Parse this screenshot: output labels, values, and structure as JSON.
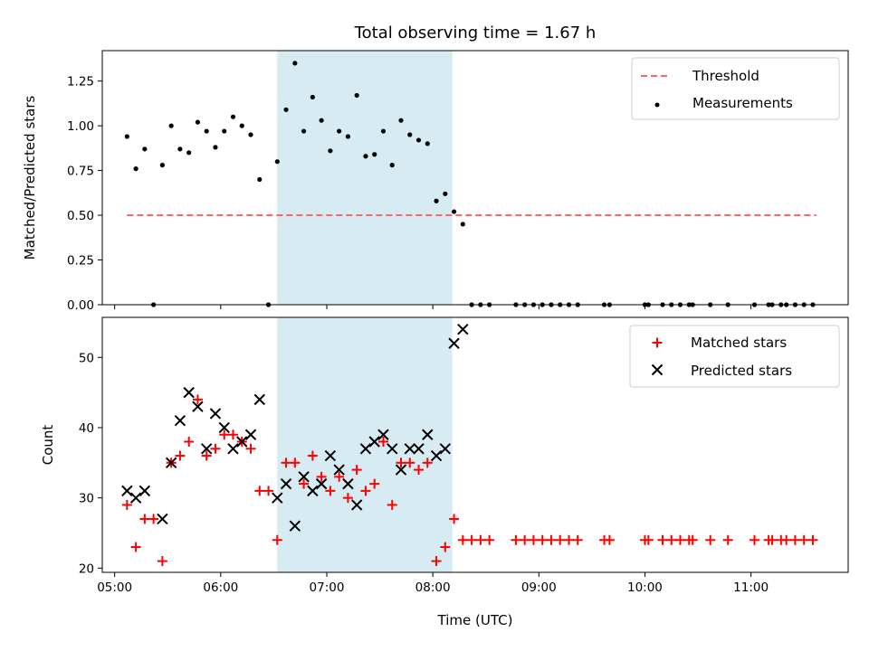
{
  "chart_data": [
    {
      "type": "scatter",
      "title": "Total observing time = 1.67 h",
      "xlabel": "",
      "ylabel": "Matched/Predicted stars",
      "xlim": [
        "04:53",
        "11:55"
      ],
      "ylim": [
        0,
        1.42
      ],
      "yticks": [
        0.0,
        0.25,
        0.5,
        0.75,
        1.0,
        1.25
      ],
      "ytick_labels": [
        "0.00",
        "0.25",
        "0.50",
        "0.75",
        "1.00",
        "1.25"
      ],
      "xticks": [
        "05:00",
        "06:00",
        "07:00",
        "08:00",
        "09:00",
        "10:00",
        "11:00"
      ],
      "show_xtick_labels": false,
      "grid": false,
      "legend": "top-right",
      "shaded_interval": {
        "x": [
          "06:32",
          "08:11"
        ],
        "color": "#add8e6"
      },
      "threshold": {
        "name": "Threshold",
        "y": 0.5,
        "x": [
          "05:07",
          "11:37"
        ],
        "color": "#ff6666"
      },
      "series": [
        {
          "name": "Measurements",
          "color": "#000000",
          "points": [
            [
              "05:07",
              0.94
            ],
            [
              "05:12",
              0.76
            ],
            [
              "05:17",
              0.87
            ],
            [
              "05:22",
              0.0
            ],
            [
              "05:27",
              0.78
            ],
            [
              "05:32",
              1.0
            ],
            [
              "05:37",
              0.87
            ],
            [
              "05:42",
              0.85
            ],
            [
              "05:47",
              1.02
            ],
            [
              "05:52",
              0.97
            ],
            [
              "05:57",
              0.88
            ],
            [
              "06:02",
              0.97
            ],
            [
              "06:07",
              1.05
            ],
            [
              "06:12",
              1.0
            ],
            [
              "06:17",
              0.95
            ],
            [
              "06:22",
              0.7
            ],
            [
              "06:27",
              0.0
            ],
            [
              "06:32",
              0.8
            ],
            [
              "06:37",
              1.09
            ],
            [
              "06:42",
              1.35
            ],
            [
              "06:47",
              0.97
            ],
            [
              "06:52",
              1.16
            ],
            [
              "06:57",
              1.03
            ],
            [
              "07:02",
              0.86
            ],
            [
              "07:07",
              0.97
            ],
            [
              "07:12",
              0.94
            ],
            [
              "07:17",
              1.17
            ],
            [
              "07:22",
              0.83
            ],
            [
              "07:27",
              0.84
            ],
            [
              "07:32",
              0.97
            ],
            [
              "07:37",
              0.78
            ],
            [
              "07:42",
              1.03
            ],
            [
              "07:47",
              0.95
            ],
            [
              "07:52",
              0.92
            ],
            [
              "07:57",
              0.9
            ],
            [
              "08:02",
              0.58
            ],
            [
              "08:07",
              0.62
            ],
            [
              "08:12",
              0.52
            ],
            [
              "08:17",
              0.45
            ],
            [
              "08:22",
              0.0
            ],
            [
              "08:27",
              0.0
            ],
            [
              "08:32",
              0.0
            ],
            [
              "08:47",
              0.0
            ],
            [
              "08:52",
              0.0
            ],
            [
              "08:57",
              0.0
            ],
            [
              "09:02",
              0.0
            ],
            [
              "09:07",
              0.0
            ],
            [
              "09:12",
              0.0
            ],
            [
              "09:17",
              0.0
            ],
            [
              "09:22",
              0.0
            ],
            [
              "09:37",
              0.0
            ],
            [
              "09:40",
              0.0
            ],
            [
              "10:00",
              0.0
            ],
            [
              "10:02",
              0.0
            ],
            [
              "10:10",
              0.0
            ],
            [
              "10:15",
              0.0
            ],
            [
              "10:20",
              0.0
            ],
            [
              "10:25",
              0.0
            ],
            [
              "10:27",
              0.0
            ],
            [
              "10:37",
              0.0
            ],
            [
              "10:47",
              0.0
            ],
            [
              "11:02",
              0.0
            ],
            [
              "11:10",
              0.0
            ],
            [
              "11:12",
              0.0
            ],
            [
              "11:17",
              0.0
            ],
            [
              "11:20",
              0.0
            ],
            [
              "11:25",
              0.0
            ],
            [
              "11:30",
              0.0
            ],
            [
              "11:35",
              0.0
            ]
          ]
        }
      ]
    },
    {
      "type": "scatter",
      "title": "",
      "xlabel": "Time (UTC)",
      "ylabel": "Count",
      "xlim": [
        "04:53",
        "11:55"
      ],
      "ylim": [
        19.4,
        55.7
      ],
      "yticks": [
        20,
        30,
        40,
        50
      ],
      "ytick_labels": [
        "20",
        "30",
        "40",
        "50"
      ],
      "xticks": [
        "05:00",
        "06:00",
        "07:00",
        "08:00",
        "09:00",
        "10:00",
        "11:00"
      ],
      "xtick_labels": [
        "05:00",
        "06:00",
        "07:00",
        "08:00",
        "09:00",
        "10:00",
        "11:00"
      ],
      "grid": false,
      "legend": "top-right",
      "shaded_interval": {
        "x": [
          "06:32",
          "08:11"
        ],
        "color": "#add8e6"
      },
      "series": [
        {
          "name": "Matched stars",
          "marker": "plus",
          "color": "#ff0000",
          "points": [
            [
              "05:07",
              29
            ],
            [
              "05:12",
              23
            ],
            [
              "05:17",
              27
            ],
            [
              "05:22",
              27
            ],
            [
              "05:27",
              21
            ],
            [
              "05:32",
              35
            ],
            [
              "05:37",
              36
            ],
            [
              "05:42",
              38
            ],
            [
              "05:47",
              44
            ],
            [
              "05:52",
              36
            ],
            [
              "05:57",
              37
            ],
            [
              "06:02",
              39
            ],
            [
              "06:07",
              39
            ],
            [
              "06:12",
              38
            ],
            [
              "06:17",
              37
            ],
            [
              "06:22",
              31
            ],
            [
              "06:27",
              31
            ],
            [
              "06:32",
              24
            ],
            [
              "06:37",
              35
            ],
            [
              "06:42",
              35
            ],
            [
              "06:47",
              32
            ],
            [
              "06:52",
              36
            ],
            [
              "06:57",
              33
            ],
            [
              "07:02",
              31
            ],
            [
              "07:07",
              33
            ],
            [
              "07:12",
              30
            ],
            [
              "07:17",
              34
            ],
            [
              "07:22",
              31
            ],
            [
              "07:27",
              32
            ],
            [
              "07:32",
              38
            ],
            [
              "07:37",
              29
            ],
            [
              "07:42",
              35
            ],
            [
              "07:47",
              35
            ],
            [
              "07:52",
              34
            ],
            [
              "07:57",
              35
            ],
            [
              "08:02",
              21
            ],
            [
              "08:07",
              23
            ],
            [
              "08:12",
              27
            ],
            [
              "08:17",
              24
            ],
            [
              "08:22",
              24
            ],
            [
              "08:27",
              24
            ],
            [
              "08:32",
              24
            ],
            [
              "08:47",
              24
            ],
            [
              "08:52",
              24
            ],
            [
              "08:57",
              24
            ],
            [
              "09:02",
              24
            ],
            [
              "09:07",
              24
            ],
            [
              "09:12",
              24
            ],
            [
              "09:17",
              24
            ],
            [
              "09:22",
              24
            ],
            [
              "09:37",
              24
            ],
            [
              "09:40",
              24
            ],
            [
              "10:00",
              24
            ],
            [
              "10:02",
              24
            ],
            [
              "10:10",
              24
            ],
            [
              "10:15",
              24
            ],
            [
              "10:20",
              24
            ],
            [
              "10:25",
              24
            ],
            [
              "10:27",
              24
            ],
            [
              "10:37",
              24
            ],
            [
              "10:47",
              24
            ],
            [
              "11:02",
              24
            ],
            [
              "11:10",
              24
            ],
            [
              "11:12",
              24
            ],
            [
              "11:17",
              24
            ],
            [
              "11:20",
              24
            ],
            [
              "11:25",
              24
            ],
            [
              "11:30",
              24
            ],
            [
              "11:35",
              24
            ]
          ]
        },
        {
          "name": "Predicted stars",
          "marker": "x",
          "color": "#000000",
          "points": [
            [
              "05:07",
              31
            ],
            [
              "05:12",
              30
            ],
            [
              "05:17",
              31
            ],
            [
              "05:27",
              27
            ],
            [
              "05:32",
              35
            ],
            [
              "05:37",
              41
            ],
            [
              "05:42",
              45
            ],
            [
              "05:47",
              43
            ],
            [
              "05:52",
              37
            ],
            [
              "05:57",
              42
            ],
            [
              "06:02",
              40
            ],
            [
              "06:07",
              37
            ],
            [
              "06:12",
              38
            ],
            [
              "06:17",
              39
            ],
            [
              "06:22",
              44
            ],
            [
              "06:32",
              30
            ],
            [
              "06:37",
              32
            ],
            [
              "06:42",
              26
            ],
            [
              "06:47",
              33
            ],
            [
              "06:52",
              31
            ],
            [
              "06:57",
              32
            ],
            [
              "07:02",
              36
            ],
            [
              "07:07",
              34
            ],
            [
              "07:12",
              32
            ],
            [
              "07:17",
              29
            ],
            [
              "07:22",
              37
            ],
            [
              "07:27",
              38
            ],
            [
              "07:32",
              39
            ],
            [
              "07:37",
              37
            ],
            [
              "07:42",
              34
            ],
            [
              "07:47",
              37
            ],
            [
              "07:52",
              37
            ],
            [
              "07:57",
              39
            ],
            [
              "08:02",
              36
            ],
            [
              "08:07",
              37
            ],
            [
              "08:12",
              52
            ],
            [
              "08:17",
              54
            ]
          ]
        }
      ]
    }
  ]
}
